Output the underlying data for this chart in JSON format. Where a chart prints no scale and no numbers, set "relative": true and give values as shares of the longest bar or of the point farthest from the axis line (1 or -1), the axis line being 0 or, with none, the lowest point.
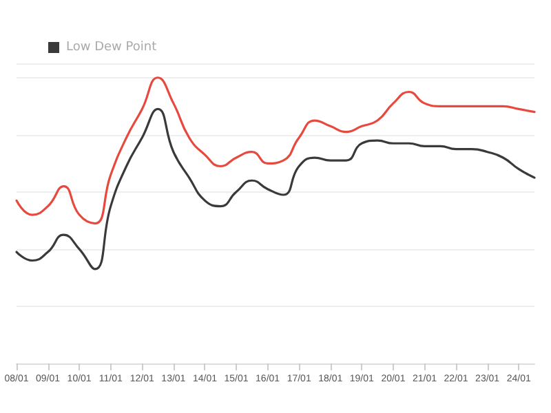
{
  "chart_data": {
    "type": "line",
    "relative": true,
    "grid": "y",
    "legend": "top left",
    "marker": "none",
    "line_style": "solid",
    "categories": [
      "08/01",
      null,
      "09/01",
      null,
      "10/01",
      null,
      "11/01",
      null,
      "12/01",
      null,
      "13/01",
      null,
      "14/01",
      null,
      "15/01",
      null,
      "16/01",
      null,
      "17/01",
      null,
      "18/01",
      null,
      "19/01",
      null,
      "20/01",
      null,
      "21/01",
      null,
      "22/01",
      null,
      "23/01",
      null,
      "24/01",
      null
    ],
    "series": [
      {
        "color": "#e8493f",
        "values": [
          0.57,
          0.52,
          0.55,
          0.62,
          0.52,
          0.49,
          0.66,
          0.79,
          0.89,
          1,
          0.91,
          0.79,
          0.73,
          0.69,
          0.72,
          0.74,
          0.7,
          0.71,
          0.79,
          0.85,
          0.83,
          0.81,
          0.83,
          0.85,
          0.91,
          0.95,
          0.91,
          0.9,
          0.9,
          0.9,
          0.9,
          0.9,
          0.89,
          0.88
        ]
      },
      {
        "name": "Low Dew Point",
        "color": "#3a3a3a",
        "values": [
          0.39,
          0.36,
          0.39,
          0.45,
          0.4,
          0.33,
          0.55,
          0.69,
          0.79,
          0.89,
          0.74,
          0.65,
          0.57,
          0.55,
          0.6,
          0.64,
          0.61,
          0.59,
          0.69,
          0.72,
          0.71,
          0.71,
          0.77,
          0.78,
          0.77,
          0.77,
          0.76,
          0.76,
          0.75,
          0.75,
          0.74,
          0.72,
          0.68,
          0.65
        ]
      }
    ]
  }
}
